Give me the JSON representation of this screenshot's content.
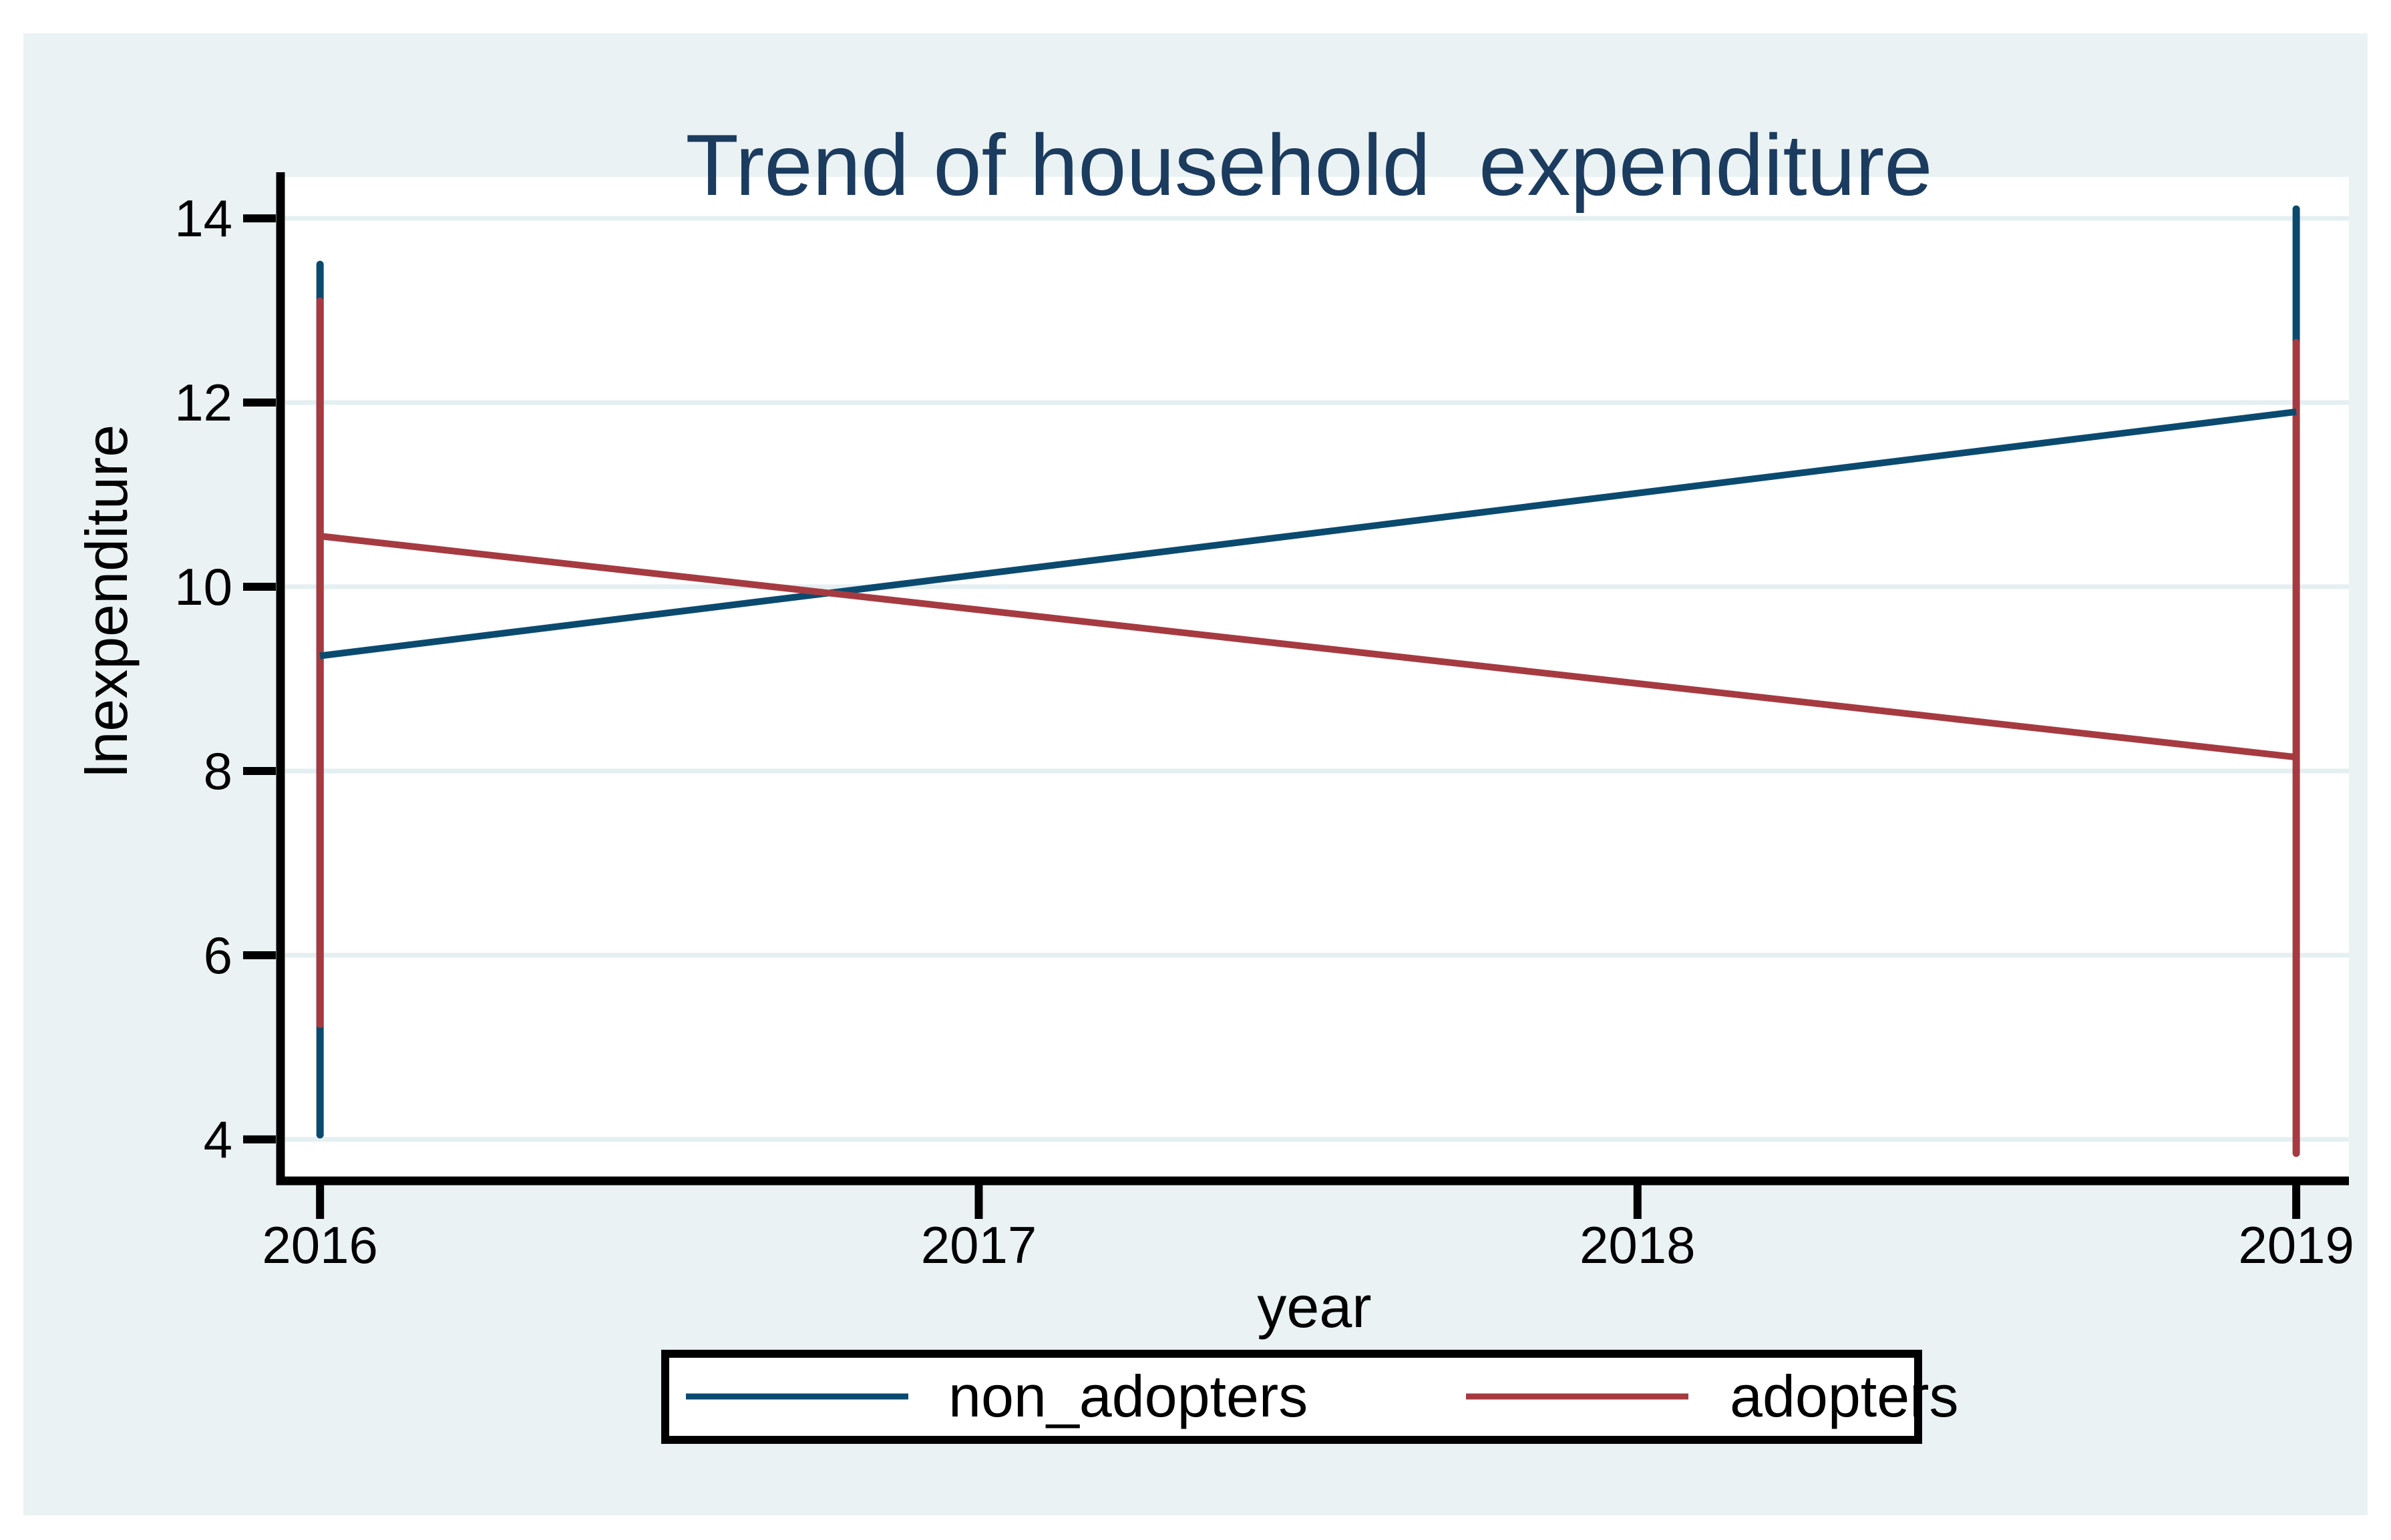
{
  "title": "Trend of household  expenditure",
  "axis": {
    "x_label": "year",
    "y_label": "lnexpenditure"
  },
  "legend": {
    "items": [
      {
        "label": "non_adopters",
        "color": "#0B4A6F"
      },
      {
        "label": "adopters",
        "color": "#A63A41"
      }
    ]
  },
  "colors": {
    "non_adopters": "#0B4A6F",
    "adopters": "#A63A41",
    "title_text": "#1B3B5F",
    "canvas_bg": "#EAF2F3",
    "plot_bg": "#FFFFFF",
    "gridline": "#E4EFF1",
    "axis_line": "#000000",
    "tick_text": "#000000",
    "legend_border": "#000000",
    "legend_bg": "#FFFFFF"
  },
  "chart_data": {
    "type": "line",
    "title": "Trend of household  expenditure",
    "xlabel": "year",
    "ylabel": "lnexpenditure",
    "x_ticks": [
      2016,
      2017,
      2018,
      2019
    ],
    "y_ticks": [
      4,
      6,
      8,
      10,
      12,
      14
    ],
    "xlim": [
      2015.94,
      2019.08
    ],
    "ylim": [
      3.55,
      14.45
    ],
    "grid": "horizontal",
    "legend_position": "bottom",
    "series": [
      {
        "name": "non_adopters",
        "color": "#0B4A6F",
        "x": [
          2016,
          2019
        ],
        "y": [
          9.25,
          11.9
        ]
      },
      {
        "name": "adopters",
        "color": "#A63A41",
        "x": [
          2016,
          2019
        ],
        "y": [
          10.55,
          8.15
        ]
      }
    ],
    "range_spikes": [
      {
        "series": "non_adopters",
        "x": 2016,
        "low": 4.05,
        "high": 13.5
      },
      {
        "series": "adopters",
        "x": 2016,
        "low": 5.25,
        "high": 13.1
      },
      {
        "series": "non_adopters",
        "x": 2019,
        "low": 12.65,
        "high": 14.1
      },
      {
        "series": "adopters",
        "x": 2019,
        "low": 3.85,
        "high": 12.65
      }
    ]
  }
}
